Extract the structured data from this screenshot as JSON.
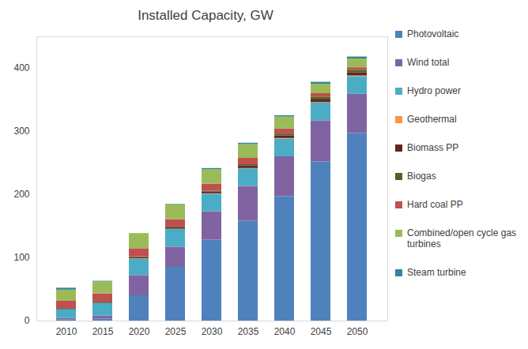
{
  "chart_data": {
    "type": "bar",
    "title": "Installed Capacity, GW",
    "stacked": true,
    "grid": false,
    "legend": "right",
    "categories": [
      "2010",
      "2015",
      "2020",
      "2025",
      "2030",
      "2035",
      "2040",
      "2045",
      "2050"
    ],
    "ylim": [
      0,
      450
    ],
    "yticks": [
      0,
      100,
      200,
      300,
      400
    ],
    "series": [
      {
        "name": "Photovoltaic",
        "color": "#4f81bd",
        "values": [
          2,
          3,
          40,
          85,
          128,
          158,
          197,
          252,
          297
        ]
      },
      {
        "name": "Wind total",
        "color": "#8064a2",
        "values": [
          2,
          5,
          32,
          32,
          45,
          55,
          63,
          65,
          62
        ]
      },
      {
        "name": "Hydro power",
        "color": "#4bacc6",
        "values": [
          14,
          20,
          26,
          28,
          28,
          28,
          28,
          28,
          28
        ]
      },
      {
        "name": "Geothermal",
        "color": "#f79646",
        "values": [
          0,
          0,
          0.5,
          0.5,
          0.5,
          0.5,
          1,
          1,
          1
        ]
      },
      {
        "name": "Biomass PP",
        "color": "#632523",
        "values": [
          1,
          1,
          2,
          2,
          3,
          4,
          4,
          4,
          5
        ]
      },
      {
        "name": "Biogas",
        "color": "#4f6228",
        "values": [
          1,
          1,
          1,
          1,
          1,
          2,
          3,
          4,
          4
        ]
      },
      {
        "name": "Hard coal PP",
        "color": "#c0504d",
        "values": [
          12,
          13,
          13,
          12,
          11,
          10,
          8,
          6,
          4
        ]
      },
      {
        "name": "Combined/open cycle gas turbines",
        "color": "#9bbb59",
        "values": [
          17,
          19,
          24,
          24,
          23,
          22,
          19,
          15,
          14
        ]
      },
      {
        "name": "Steam turbine",
        "color": "#31859c",
        "values": [
          3,
          1,
          0,
          0.5,
          2,
          2,
          2,
          3,
          3
        ]
      }
    ]
  }
}
